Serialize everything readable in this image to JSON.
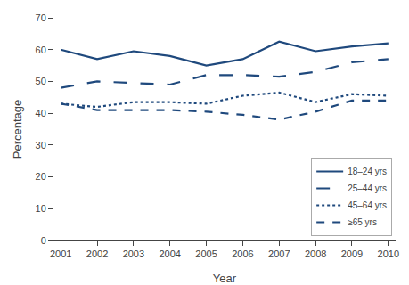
{
  "chart_data": {
    "type": "line",
    "xlabel": "Year",
    "ylabel": "Percentage",
    "x": [
      2001,
      2002,
      2003,
      2004,
      2005,
      2006,
      2007,
      2008,
      2009,
      2010
    ],
    "series": [
      {
        "name": "18–24 yrs",
        "line_style": "solid",
        "values": [
          60,
          57,
          59.5,
          58,
          55,
          57,
          62.5,
          59.5,
          61,
          62
        ]
      },
      {
        "name": "25–44 yrs",
        "line_style": "longdash",
        "values": [
          48,
          50,
          49.5,
          49,
          52,
          52,
          51.5,
          53,
          56,
          57
        ]
      },
      {
        "name": "45–64 yrs",
        "line_style": "dot",
        "values": [
          43,
          42,
          43.5,
          43.5,
          43,
          45.5,
          46.5,
          43.5,
          46,
          45.5
        ]
      },
      {
        "name": "≥65 yrs",
        "line_style": "dash",
        "values": [
          43,
          41,
          41,
          41,
          40.5,
          39.5,
          38,
          40.5,
          44,
          44
        ]
      }
    ],
    "color": "#1f497d",
    "xlim": [
      2000.8,
      2010.2
    ],
    "xticks": [
      2001,
      2002,
      2003,
      2004,
      2005,
      2006,
      2007,
      2008,
      2009,
      2010
    ],
    "ylim": [
      0,
      70
    ],
    "yticks": [
      0,
      10,
      20,
      30,
      40,
      50,
      60,
      70
    ],
    "grid": false,
    "legend": "lower right"
  }
}
